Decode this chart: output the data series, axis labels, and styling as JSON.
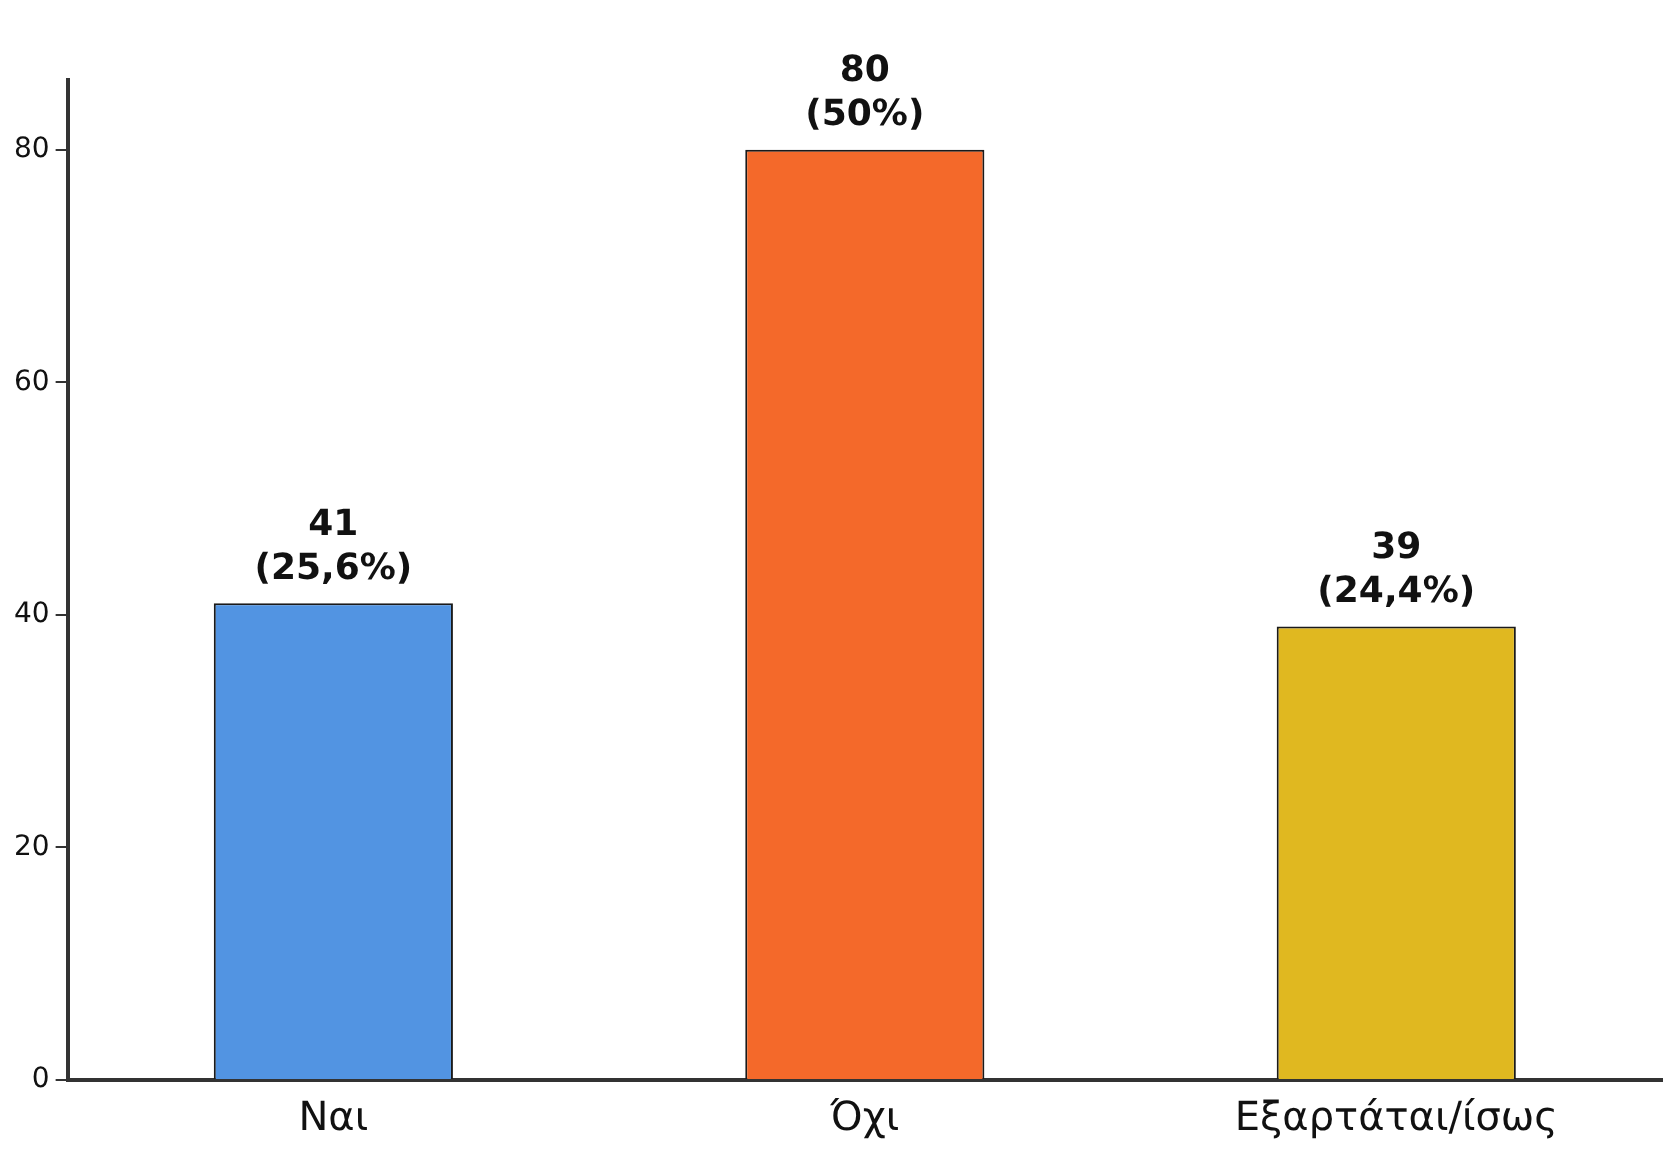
{
  "chart_data": {
    "type": "bar",
    "categories": [
      "Ναι",
      "Όχι",
      "Εξαρτάται/ίσως"
    ],
    "values": [
      41,
      80,
      39
    ],
    "colors": [
      "#5294e2",
      "#f4692a",
      "#e0b820"
    ],
    "value_labels": [
      "41\n(25,6%)",
      "80\n(50%)",
      "39\n(24,4%)"
    ],
    "ylim": [
      0,
      86
    ],
    "yticks": [
      0,
      20,
      40,
      60,
      80
    ],
    "grid": false,
    "legend": false
  }
}
